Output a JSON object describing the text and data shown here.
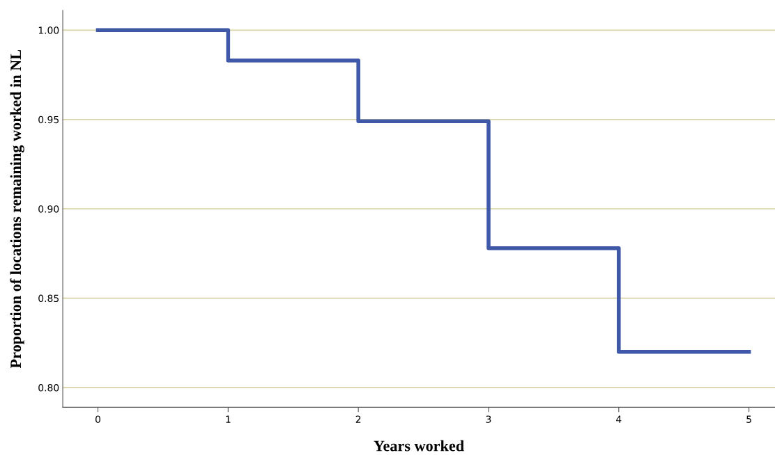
{
  "chart_data": {
    "type": "step",
    "xlabel": "Years worked",
    "ylabel": "Proportion of locations remaining worked in NL",
    "x": [
      0,
      1,
      2,
      3,
      4,
      5
    ],
    "series": [
      {
        "color": "#3f58a8",
        "values": [
          1.0,
          0.983,
          0.949,
          0.878,
          0.82,
          0.82
        ]
      }
    ],
    "xlim": [
      -0.27,
      5.2
    ],
    "ylim": [
      0.789,
      1.011
    ],
    "xticks": [
      0,
      1,
      2,
      3,
      4,
      5
    ],
    "yticks": [
      {
        "value": 0.8,
        "label": "0.80"
      },
      {
        "value": 0.85,
        "label": "0.85"
      },
      {
        "value": 0.9,
        "label": "0.90"
      },
      {
        "value": 0.95,
        "label": "0.95"
      },
      {
        "value": 1.0,
        "label": "1.00"
      }
    ],
    "grid": "y",
    "legend": false,
    "marker": "none",
    "line_style": "solid"
  }
}
